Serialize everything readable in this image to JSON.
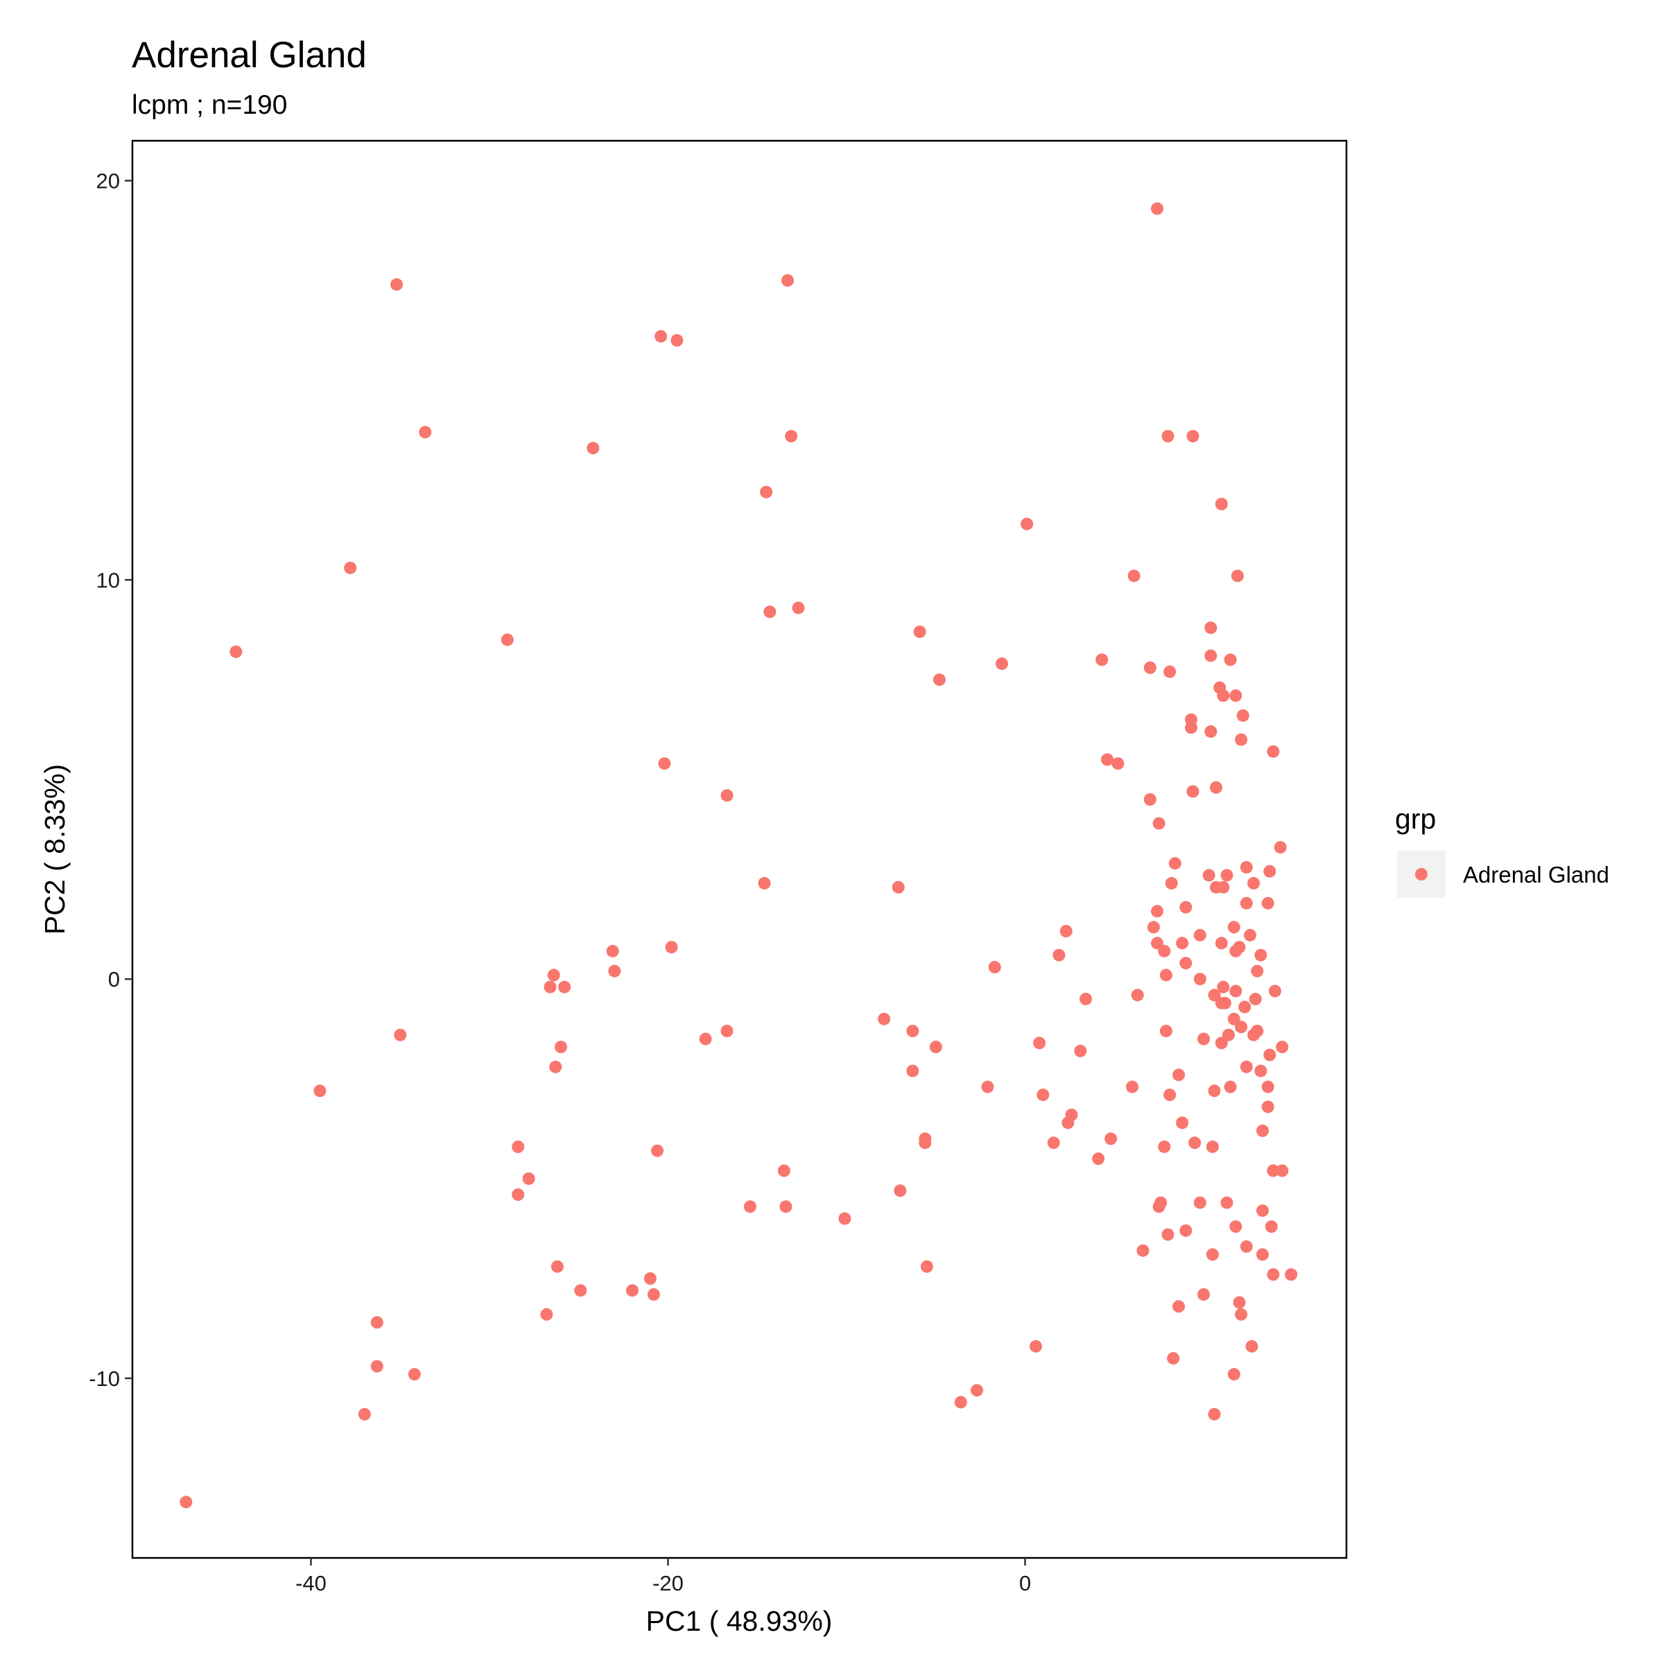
{
  "chart_data": {
    "type": "scatter",
    "title": "Adrenal Gland",
    "subtitle": "lcpm ; n=190",
    "xlabel": "PC1 ( 48.93%)",
    "ylabel": "PC2 ( 8.33%)",
    "xlim": [
      -50,
      18
    ],
    "ylim": [
      -14.5,
      21
    ],
    "x_ticks": [
      -40,
      -20,
      0
    ],
    "y_ticks": [
      -10,
      0,
      10,
      20
    ],
    "grid": false,
    "legend": {
      "title": "grp",
      "position": "right",
      "entries": [
        "Adrenal Gland"
      ]
    },
    "colors": {
      "point": "#F8766D",
      "legend_key_bg": "#F2F2F2"
    },
    "series": [
      {
        "name": "Adrenal Gland",
        "points": [
          [
            7.4,
            19.3
          ],
          [
            -13.3,
            17.5
          ],
          [
            -35.2,
            17.4
          ],
          [
            -20.4,
            16.1
          ],
          [
            -19.5,
            16.0
          ],
          [
            8.0,
            13.6
          ],
          [
            9.4,
            13.6
          ],
          [
            -33.6,
            13.7
          ],
          [
            -13.1,
            13.6
          ],
          [
            -24.2,
            13.3
          ],
          [
            -14.5,
            12.2
          ],
          [
            11.0,
            11.9
          ],
          [
            0.1,
            11.4
          ],
          [
            -37.8,
            10.3
          ],
          [
            6.1,
            10.1
          ],
          [
            11.9,
            10.1
          ],
          [
            -14.3,
            9.2
          ],
          [
            -12.7,
            9.3
          ],
          [
            -5.9,
            8.7
          ],
          [
            -29.0,
            8.5
          ],
          [
            -44.2,
            8.2
          ],
          [
            10.4,
            8.8
          ],
          [
            10.4,
            8.1
          ],
          [
            11.5,
            8.0
          ],
          [
            4.3,
            8.0
          ],
          [
            -1.3,
            7.9
          ],
          [
            7.0,
            7.8
          ],
          [
            8.1,
            7.7
          ],
          [
            -4.8,
            7.5
          ],
          [
            10.9,
            7.3
          ],
          [
            11.1,
            7.1
          ],
          [
            11.8,
            7.1
          ],
          [
            12.2,
            6.6
          ],
          [
            9.3,
            6.5
          ],
          [
            9.3,
            6.3
          ],
          [
            10.4,
            6.2
          ],
          [
            12.1,
            6.0
          ],
          [
            13.9,
            5.7
          ],
          [
            4.6,
            5.5
          ],
          [
            5.2,
            5.4
          ],
          [
            -20.2,
            5.4
          ],
          [
            10.7,
            4.8
          ],
          [
            -16.7,
            4.6
          ],
          [
            9.4,
            4.7
          ],
          [
            7.0,
            4.5
          ],
          [
            7.5,
            3.9
          ],
          [
            14.3,
            3.3
          ],
          [
            8.4,
            2.9
          ],
          [
            12.4,
            2.8
          ],
          [
            13.7,
            2.7
          ],
          [
            10.3,
            2.6
          ],
          [
            11.3,
            2.6
          ],
          [
            10.7,
            2.3
          ],
          [
            11.1,
            2.3
          ],
          [
            12.8,
            2.4
          ],
          [
            -14.6,
            2.4
          ],
          [
            -7.1,
            2.3
          ],
          [
            8.2,
            2.4
          ],
          [
            12.4,
            1.9
          ],
          [
            13.6,
            1.9
          ],
          [
            9.0,
            1.8
          ],
          [
            7.4,
            1.7
          ],
          [
            2.3,
            1.2
          ],
          [
            7.2,
            1.3
          ],
          [
            11.7,
            1.3
          ],
          [
            9.8,
            1.1
          ],
          [
            12.6,
            1.1
          ],
          [
            8.8,
            0.9
          ],
          [
            11.0,
            0.9
          ],
          [
            12.0,
            0.8
          ],
          [
            7.4,
            0.9
          ],
          [
            7.8,
            0.7
          ],
          [
            11.8,
            0.7
          ],
          [
            13.2,
            0.6
          ],
          [
            -23.1,
            0.7
          ],
          [
            -19.8,
            0.8
          ],
          [
            1.9,
            0.6
          ],
          [
            9.0,
            0.4
          ],
          [
            -1.7,
            0.3
          ],
          [
            -23.0,
            0.2
          ],
          [
            13.0,
            0.2
          ],
          [
            7.9,
            0.1
          ],
          [
            9.8,
            0.0
          ],
          [
            -26.4,
            0.1
          ],
          [
            -26.6,
            -0.2
          ],
          [
            -25.8,
            -0.2
          ],
          [
            11.1,
            -0.2
          ],
          [
            11.8,
            -0.3
          ],
          [
            14.0,
            -0.3
          ],
          [
            6.3,
            -0.4
          ],
          [
            10.6,
            -0.4
          ],
          [
            11.0,
            -0.6
          ],
          [
            11.2,
            -0.6
          ],
          [
            12.9,
            -0.5
          ],
          [
            12.3,
            -0.7
          ],
          [
            3.4,
            -0.5
          ],
          [
            -7.9,
            -1.0
          ],
          [
            11.7,
            -1.0
          ],
          [
            12.1,
            -1.2
          ],
          [
            7.9,
            -1.3
          ],
          [
            -6.3,
            -1.3
          ],
          [
            13.0,
            -1.3
          ],
          [
            11.4,
            -1.4
          ],
          [
            12.8,
            -1.4
          ],
          [
            10.0,
            -1.5
          ],
          [
            -35.0,
            -1.4
          ],
          [
            -16.7,
            -1.3
          ],
          [
            -17.9,
            -1.5
          ],
          [
            11.0,
            -1.6
          ],
          [
            0.8,
            -1.6
          ],
          [
            14.4,
            -1.7
          ],
          [
            -26.0,
            -1.7
          ],
          [
            -5.0,
            -1.7
          ],
          [
            3.1,
            -1.8
          ],
          [
            13.7,
            -1.9
          ],
          [
            -26.3,
            -2.2
          ],
          [
            -6.3,
            -2.3
          ],
          [
            8.6,
            -2.4
          ],
          [
            12.4,
            -2.2
          ],
          [
            13.2,
            -2.3
          ],
          [
            6.0,
            -2.7
          ],
          [
            -2.1,
            -2.7
          ],
          [
            10.6,
            -2.8
          ],
          [
            11.5,
            -2.7
          ],
          [
            13.6,
            -2.7
          ],
          [
            -39.5,
            -2.8
          ],
          [
            1.0,
            -2.9
          ],
          [
            8.1,
            -2.9
          ],
          [
            13.6,
            -3.2
          ],
          [
            2.6,
            -3.4
          ],
          [
            2.4,
            -3.6
          ],
          [
            8.8,
            -3.6
          ],
          [
            13.3,
            -3.8
          ],
          [
            4.8,
            -4.0
          ],
          [
            9.5,
            -4.1
          ],
          [
            -5.6,
            -4.0
          ],
          [
            -5.6,
            -4.1
          ],
          [
            1.6,
            -4.1
          ],
          [
            -28.4,
            -4.2
          ],
          [
            7.8,
            -4.2
          ],
          [
            10.5,
            -4.2
          ],
          [
            -20.6,
            -4.3
          ],
          [
            4.1,
            -4.5
          ],
          [
            -13.5,
            -4.8
          ],
          [
            13.9,
            -4.8
          ],
          [
            14.4,
            -4.8
          ],
          [
            -27.8,
            -5.0
          ],
          [
            -28.4,
            -5.4
          ],
          [
            -7.0,
            -5.3
          ],
          [
            7.6,
            -5.6
          ],
          [
            7.5,
            -5.7
          ],
          [
            9.8,
            -5.6
          ],
          [
            11.3,
            -5.6
          ],
          [
            13.3,
            -5.8
          ],
          [
            -15.4,
            -5.7
          ],
          [
            -13.4,
            -5.7
          ],
          [
            -10.1,
            -6.0
          ],
          [
            11.8,
            -6.2
          ],
          [
            13.8,
            -6.2
          ],
          [
            9.0,
            -6.3
          ],
          [
            8.0,
            -6.4
          ],
          [
            12.4,
            -6.7
          ],
          [
            6.6,
            -6.8
          ],
          [
            10.5,
            -6.9
          ],
          [
            13.3,
            -6.9
          ],
          [
            -26.2,
            -7.2
          ],
          [
            -5.5,
            -7.2
          ],
          [
            13.9,
            -7.4
          ],
          [
            14.9,
            -7.4
          ],
          [
            -21.0,
            -7.5
          ],
          [
            -24.9,
            -7.8
          ],
          [
            -22.0,
            -7.8
          ],
          [
            -20.8,
            -7.9
          ],
          [
            10.0,
            -7.9
          ],
          [
            12.0,
            -8.1
          ],
          [
            -26.8,
            -8.4
          ],
          [
            8.6,
            -8.2
          ],
          [
            12.1,
            -8.4
          ],
          [
            -36.3,
            -8.6
          ],
          [
            0.6,
            -9.2
          ],
          [
            12.7,
            -9.2
          ],
          [
            8.3,
            -9.5
          ],
          [
            -36.3,
            -9.7
          ],
          [
            -34.2,
            -9.9
          ],
          [
            11.7,
            -9.9
          ],
          [
            -2.7,
            -10.3
          ],
          [
            -3.6,
            -10.6
          ],
          [
            -37.0,
            -10.9
          ],
          [
            10.6,
            -10.9
          ],
          [
            -47.0,
            -13.1
          ]
        ]
      }
    ]
  }
}
